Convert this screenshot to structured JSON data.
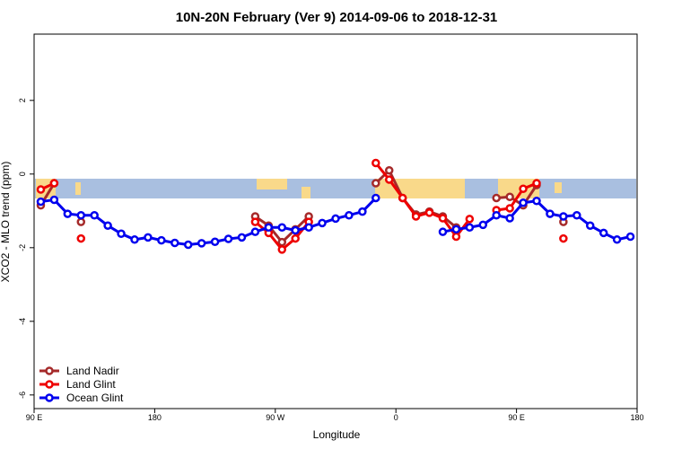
{
  "chart_data": {
    "type": "line",
    "title": "10N-20N February (Ver 9)   2014-09-06 to 2018-12-31",
    "x_label": "Longitude",
    "y_label": "XCO2 - MLO trend (ppm)",
    "x": [
      95,
      105,
      115,
      125,
      135,
      145,
      155,
      165,
      175,
      185,
      195,
      205,
      215,
      225,
      235,
      245,
      255,
      265,
      275,
      285,
      295,
      305,
      315,
      325,
      335,
      345,
      355,
      365,
      375,
      385,
      395,
      405,
      415,
      425,
      435,
      445,
      455,
      465,
      475,
      485,
      495,
      505,
      515,
      525,
      535
    ],
    "series": [
      {
        "name": "Land Nadir",
        "color": "#a52a2a",
        "values": [
          -0.85,
          -0.25,
          null,
          -1.3,
          null,
          null,
          null,
          null,
          null,
          null,
          null,
          null,
          null,
          null,
          null,
          null,
          -1.15,
          -1.4,
          -1.85,
          -1.5,
          -1.15,
          null,
          null,
          null,
          null,
          -0.25,
          0.1,
          -0.65,
          -1.1,
          -1.02,
          -1.15,
          -1.45,
          null,
          null,
          -0.65,
          -0.62,
          -0.85,
          -0.3,
          null,
          -1.3,
          null,
          null,
          null,
          null,
          null
        ]
      },
      {
        "name": "Land Glint",
        "color": "#ee0000",
        "values": [
          -0.42,
          -0.25,
          null,
          -1.75,
          null,
          null,
          null,
          null,
          null,
          null,
          null,
          null,
          null,
          null,
          null,
          null,
          -1.3,
          -1.6,
          -2.05,
          -1.75,
          -1.3,
          null,
          null,
          null,
          null,
          0.3,
          -0.15,
          -0.65,
          -1.15,
          -1.05,
          -1.2,
          -1.7,
          -1.22,
          null,
          -0.98,
          -0.93,
          -0.4,
          -0.25,
          null,
          -1.75,
          null,
          null,
          null,
          null,
          null
        ]
      },
      {
        "name": "Ocean Glint",
        "color": "#0000ee",
        "values": [
          -0.75,
          -0.7,
          -1.08,
          -1.12,
          -1.12,
          -1.4,
          -1.62,
          -1.78,
          -1.72,
          -1.8,
          -1.87,
          -1.92,
          -1.88,
          -1.84,
          -1.76,
          -1.72,
          -1.57,
          -1.45,
          -1.45,
          -1.53,
          -1.45,
          -1.33,
          -1.21,
          -1.12,
          -1.02,
          -0.65,
          null,
          null,
          null,
          null,
          -1.57,
          -1.5,
          -1.45,
          -1.38,
          -1.12,
          -1.2,
          -0.78,
          -0.73,
          -1.08,
          -1.15,
          -1.12,
          -1.4,
          -1.6,
          -1.78,
          -1.7
        ]
      }
    ],
    "xlim": [
      90,
      540
    ],
    "xticks": [
      {
        "value": 90,
        "label": "90 E"
      },
      180,
      {
        "value": 270,
        "label": "90 W"
      },
      {
        "value": 360,
        "label": "0"
      },
      {
        "value": 450,
        "label": "90 E"
      },
      {
        "value": 540,
        "label": "180"
      }
    ],
    "ylim": [
      -6.37,
      3.8
    ],
    "yticks": [
      -6,
      -4,
      -2,
      0,
      2
    ],
    "legend": "bottom-left"
  }
}
